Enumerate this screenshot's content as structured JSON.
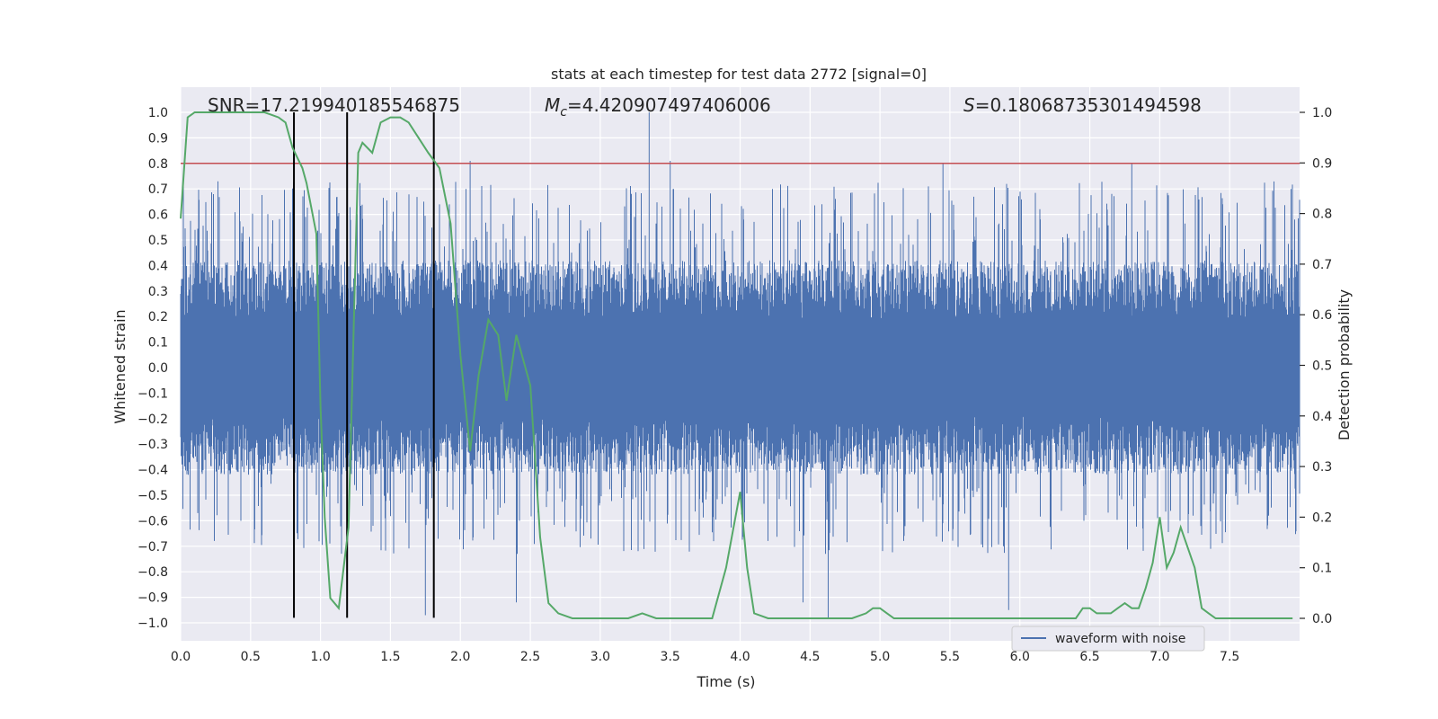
{
  "chart_data": {
    "type": "line",
    "title": "stats at each timestep for test data 2772 [signal=0]",
    "xlabel": "Time (s)",
    "ylabel_left": "Whitened strain",
    "ylabel_right": "Detection probability",
    "xlim": [
      0,
      8.0
    ],
    "ylim_left": [
      -1.08,
      1.1
    ],
    "ylim_right": [
      -0.05,
      1.05
    ],
    "x_ticks": [
      0.0,
      0.5,
      1.0,
      1.5,
      2.0,
      2.5,
      3.0,
      3.5,
      4.0,
      4.5,
      5.0,
      5.5,
      6.0,
      6.5,
      7.0,
      7.5
    ],
    "x_tick_labels": [
      "0.0",
      "0.5",
      "1.0",
      "1.5",
      "2.0",
      "2.5",
      "3.0",
      "3.5",
      "4.0",
      "4.5",
      "5.0",
      "5.5",
      "6.0",
      "6.5",
      "7.0",
      "7.5"
    ],
    "y_left_ticks": [
      1.0,
      0.9,
      0.8,
      0.7,
      0.6,
      0.5,
      0.4,
      0.3,
      0.2,
      0.1,
      0.0,
      -0.1,
      -0.2,
      -0.3,
      -0.4,
      -0.5,
      -0.6,
      -0.7,
      -0.8,
      -0.9,
      -1.0
    ],
    "y_left_tick_labels": [
      "1.0",
      "0.9",
      "0.8",
      "0.7",
      "0.6",
      "0.5",
      "0.4",
      "0.3",
      "0.2",
      "0.1",
      "0.0",
      "−0.1",
      "−0.2",
      "−0.3",
      "−0.4",
      "−0.5",
      "−0.6",
      "−0.7",
      "−0.8",
      "−0.9",
      "−1.0"
    ],
    "y_right_ticks": [
      1.0,
      0.9,
      0.8,
      0.7,
      0.6,
      0.5,
      0.4,
      0.3,
      0.2,
      0.1,
      0.0
    ],
    "y_right_tick_labels": [
      "1.0",
      "0.9",
      "0.8",
      "0.7",
      "0.6",
      "0.5",
      "0.4",
      "0.3",
      "0.2",
      "0.1",
      "0.0"
    ],
    "annotations": {
      "snr": "SNR=17.219940185546875",
      "mc_symbol": "M",
      "mc_subscript": "c",
      "mc_value": "=4.420907497406006",
      "s_symbol": "S",
      "s_value": "=0.18068735301494598"
    },
    "threshold": {
      "value": 0.8,
      "axis": "left",
      "color": "#c44e52"
    },
    "vertical_markers": {
      "x": [
        0.81,
        1.19,
        1.81
      ],
      "y_range": [
        -0.98,
        1.0
      ],
      "color": "#000000"
    },
    "legend": {
      "position": "lower-right",
      "entries": [
        {
          "label": "waveform with noise",
          "color": "#4c72b0"
        }
      ]
    },
    "grid": true,
    "series": [
      {
        "name": "waveform with noise",
        "axis": "left",
        "color": "#4c72b0",
        "style": "dense-noise",
        "typical_envelope": [
          -0.42,
          0.42
        ],
        "max_peak": 1.0,
        "min_peak": -0.98
      },
      {
        "axis": "right",
        "color": "#55a868",
        "x": [
          0.0,
          0.05,
          0.1,
          0.2,
          0.3,
          0.4,
          0.5,
          0.6,
          0.7,
          0.75,
          0.8,
          0.87,
          0.9,
          0.97,
          1.0,
          1.03,
          1.07,
          1.13,
          1.2,
          1.27,
          1.3,
          1.37,
          1.43,
          1.5,
          1.57,
          1.63,
          1.7,
          1.77,
          1.85,
          1.93,
          2.0,
          2.07,
          2.13,
          2.2,
          2.27,
          2.33,
          2.4,
          2.43,
          2.5,
          2.57,
          2.63,
          2.7,
          2.8,
          2.9,
          3.0,
          3.1,
          3.2,
          3.3,
          3.4,
          3.5,
          3.6,
          3.7,
          3.8,
          3.9,
          4.0,
          4.05,
          4.1,
          4.2,
          4.3,
          4.4,
          4.5,
          4.6,
          4.7,
          4.8,
          4.9,
          4.95,
          5.0,
          5.05,
          5.1,
          5.2,
          5.3,
          5.4,
          5.5,
          5.6,
          5.7,
          5.8,
          5.9,
          6.0,
          6.1,
          6.2,
          6.3,
          6.4,
          6.45,
          6.5,
          6.55,
          6.6,
          6.65,
          6.7,
          6.75,
          6.8,
          6.85,
          6.9,
          6.95,
          7.0,
          7.05,
          7.1,
          7.15,
          7.2,
          7.25,
          7.3,
          7.35,
          7.4,
          7.5,
          7.6,
          7.7,
          7.8,
          7.95
        ],
        "values": [
          0.79,
          0.99,
          1.0,
          1.0,
          1.0,
          1.0,
          1.0,
          1.0,
          0.99,
          0.98,
          0.93,
          0.89,
          0.86,
          0.76,
          0.42,
          0.2,
          0.04,
          0.02,
          0.18,
          0.92,
          0.94,
          0.92,
          0.98,
          0.99,
          0.99,
          0.98,
          0.95,
          0.92,
          0.89,
          0.78,
          0.52,
          0.33,
          0.48,
          0.59,
          0.56,
          0.43,
          0.56,
          0.53,
          0.46,
          0.16,
          0.03,
          0.01,
          0.0,
          0.0,
          0.0,
          0.0,
          0.0,
          0.01,
          0.0,
          0.0,
          0.0,
          0.0,
          0.0,
          0.1,
          0.25,
          0.1,
          0.01,
          0.0,
          0.0,
          0.0,
          0.0,
          0.0,
          0.0,
          0.0,
          0.01,
          0.02,
          0.02,
          0.01,
          0.0,
          0.0,
          0.0,
          0.0,
          0.0,
          0.0,
          0.0,
          0.0,
          0.0,
          0.0,
          0.0,
          0.0,
          0.0,
          0.0,
          0.02,
          0.02,
          0.01,
          0.01,
          0.01,
          0.02,
          0.03,
          0.02,
          0.02,
          0.06,
          0.11,
          0.2,
          0.1,
          0.13,
          0.18,
          0.14,
          0.1,
          0.02,
          0.01,
          0.0,
          0.0,
          0.0,
          0.0,
          0.0,
          0.0
        ]
      }
    ]
  }
}
